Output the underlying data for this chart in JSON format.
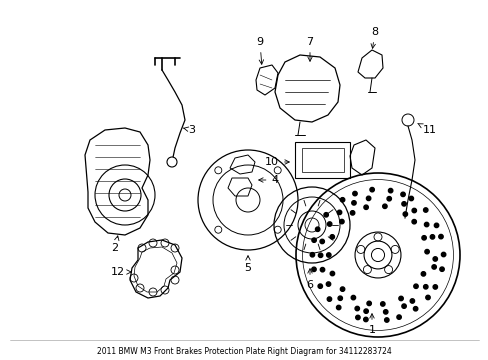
{
  "title": "2011 BMW M3 Front Brakes Protection Plate Right Diagram for 34112283724",
  "bg_color": "#ffffff",
  "line_color": "#000000",
  "fig_width": 4.89,
  "fig_height": 3.6,
  "dpi": 100
}
